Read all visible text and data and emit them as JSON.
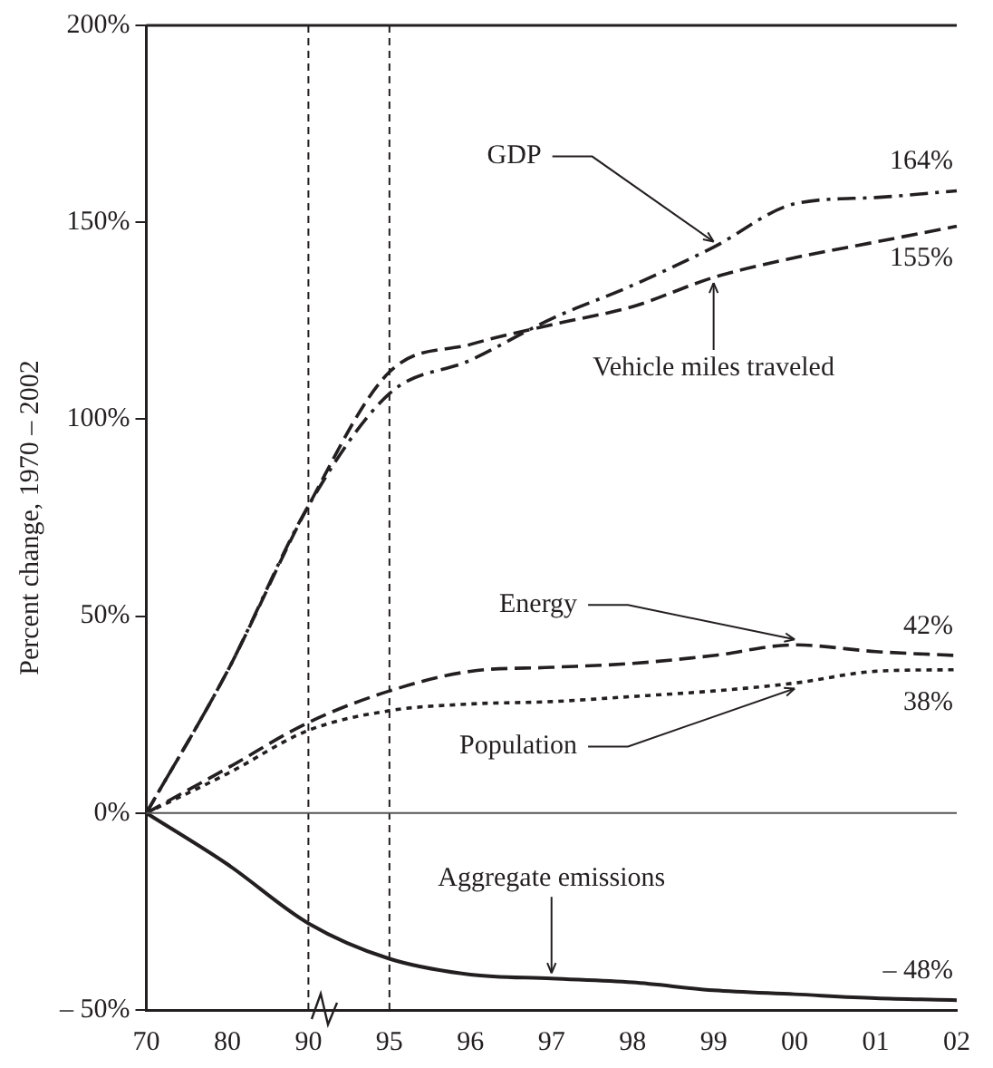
{
  "chart_data": {
    "type": "line",
    "ylabel": "Percent change, 1970 – 2002",
    "categories": [
      "70",
      "80",
      "90",
      "95",
      "96",
      "97",
      "98",
      "99",
      "00",
      "01",
      "02"
    ],
    "ylim": [
      -50,
      200
    ],
    "yticks": [
      {
        "value": -50,
        "label": "– 50%"
      },
      {
        "value": 0,
        "label": "0%"
      },
      {
        "value": 50,
        "label": "50%"
      },
      {
        "value": 100,
        "label": "100%"
      },
      {
        "value": 150,
        "label": "150%"
      },
      {
        "value": 200,
        "label": "200%"
      }
    ],
    "series": [
      {
        "name": "GDP",
        "color": "#231f20",
        "line_style": "dashdot",
        "values": [
          0,
          36,
          78,
          106.5,
          115,
          125.5,
          134,
          143.7,
          154.7,
          156.3,
          158
        ]
      },
      {
        "name": "Vehicle miles traveled",
        "color": "#231f20",
        "line_style": "dashed",
        "values": [
          0,
          36,
          78,
          112,
          119,
          124,
          128.6,
          136,
          141,
          145,
          149
        ]
      },
      {
        "name": "Energy",
        "color": "#231f20",
        "line_style": "dashed",
        "values": [
          0,
          11.4,
          23,
          31,
          36,
          37,
          38,
          40,
          42.7,
          41,
          40
        ]
      },
      {
        "name": "Population",
        "color": "#231f20",
        "line_style": "dotted",
        "values": [
          0,
          10,
          21,
          26,
          27.7,
          28.3,
          29.6,
          31,
          33,
          36,
          36.4
        ]
      },
      {
        "name": "Aggregate emissions",
        "color": "#231f20",
        "line_style": "solid",
        "values": [
          0,
          -13,
          -28,
          -37,
          -41,
          -42,
          -43,
          -45,
          -46,
          -47,
          -47.5
        ]
      }
    ],
    "ref_lines": [
      {
        "axis": "x",
        "value": "90",
        "color": "#231f20",
        "line_style": "dashed"
      },
      {
        "axis": "x",
        "value": "95",
        "color": "#231f20",
        "line_style": "dashed"
      },
      {
        "axis": "y",
        "value": 0,
        "color": "#555555",
        "line_style": "solid"
      }
    ],
    "annotations": [
      {
        "text": "164%",
        "x": "02",
        "y": 158
      },
      {
        "text": "155%",
        "x": "02",
        "y": 149
      },
      {
        "text": "42%",
        "x": "02",
        "y": 40
      },
      {
        "text": "38%",
        "x": "02",
        "y": 36.4
      },
      {
        "text": "– 48%",
        "x": "02",
        "y": -47.5
      }
    ],
    "legend": false,
    "grid": false,
    "marker": "none"
  }
}
